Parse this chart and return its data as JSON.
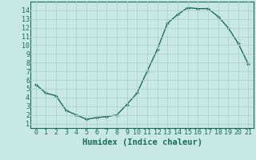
{
  "x": [
    0,
    1,
    2,
    3,
    4,
    5,
    6,
    7,
    8,
    9,
    10,
    11,
    12,
    13,
    14,
    15,
    16,
    17,
    18,
    19,
    20,
    21
  ],
  "y": [
    5.5,
    4.5,
    4.2,
    2.5,
    2.0,
    1.5,
    1.7,
    1.8,
    2.0,
    3.2,
    4.5,
    7.0,
    9.5,
    12.5,
    13.5,
    14.3,
    14.2,
    14.2,
    13.3,
    12.0,
    10.2,
    7.8
  ],
  "line_color": "#1a6b5a",
  "marker": "+",
  "bg_color": "#c8e8e8",
  "grid_color": "#b0cece",
  "xlabel": "Humidex (Indice chaleur)",
  "xlim": [
    -0.5,
    21.5
  ],
  "ylim": [
    0.5,
    15.0
  ],
  "yticks": [
    1,
    2,
    3,
    4,
    5,
    6,
    7,
    8,
    9,
    10,
    11,
    12,
    13,
    14
  ],
  "xticks": [
    0,
    1,
    2,
    3,
    4,
    5,
    6,
    7,
    8,
    9,
    10,
    11,
    12,
    13,
    14,
    15,
    16,
    17,
    18,
    19,
    20,
    21
  ],
  "tick_fontsize": 6,
  "xlabel_fontsize": 7.5,
  "label_color": "#1a6b5a"
}
